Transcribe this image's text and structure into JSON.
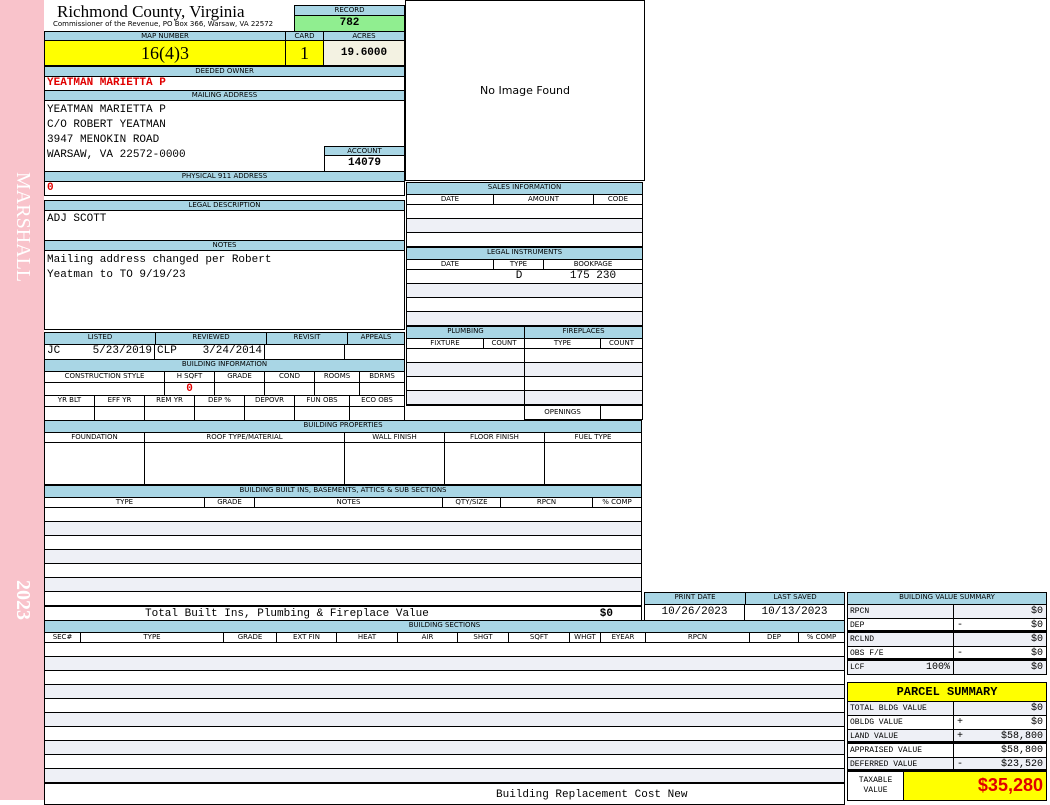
{
  "sidebar": {
    "district": "MARSHALL",
    "year": "2023",
    "color": "#f9c3cb"
  },
  "header": {
    "county": "Richmond County, Virginia",
    "subtitle": "Commissioner of the Revenue, PO Box 366, Warsaw, VA 22572",
    "record_label": "RECORD",
    "record": "782"
  },
  "parcel": {
    "map_number_label": "MAP NUMBER",
    "map_number": "16(4)3",
    "card_label": "CARD",
    "card": "1",
    "acres_label": "ACRES",
    "acres": "19.6000"
  },
  "owner": {
    "label": "DEEDED OWNER",
    "name": "YEATMAN MARIETTA P"
  },
  "mailing": {
    "label": "MAILING ADDRESS",
    "lines": [
      "YEATMAN MARIETTA P",
      "C/O ROBERT YEATMAN",
      "3947 MENOKIN ROAD",
      "WARSAW, VA 22572-0000"
    ],
    "account_label": "ACCOUNT",
    "account": "14079"
  },
  "physical": {
    "label": "PHYSICAL 911 ADDRESS",
    "value": "0"
  },
  "legal": {
    "label": "LEGAL DESCRIPTION",
    "value": "ADJ SCOTT"
  },
  "notes": {
    "label": "NOTES",
    "lines": [
      "Mailing address changed per Robert",
      "Yeatman to TO 9/19/23"
    ]
  },
  "review": {
    "listed_label": "LISTED",
    "listed_by": "JC",
    "listed_date": "5/23/2019",
    "reviewed_label": "REVIEWED",
    "reviewed_by": "CLP",
    "reviewed_date": "3/24/2014",
    "revisit_label": "REVISIT",
    "appeals_label": "APPEALS"
  },
  "building_info": {
    "label": "BUILDING INFORMATION",
    "cols1": [
      "CONSTRUCTION STYLE",
      "H SQFT",
      "GRADE",
      "COND",
      "ROOMS",
      "BDRMS"
    ],
    "hsqft": "0",
    "cols2": [
      "YR BLT",
      "EFF YR",
      "REM YR",
      "DEP %",
      "DEPOVR",
      "FUN OBS",
      "ECO OBS"
    ]
  },
  "image": {
    "text": "No Image Found"
  },
  "sales": {
    "label": "SALES INFORMATION",
    "cols": [
      "DATE",
      "AMOUNT",
      "CODE"
    ]
  },
  "instruments": {
    "label": "LEGAL INSTRUMENTS",
    "cols": [
      "DATE",
      "TYPE",
      "BOOKPAGE"
    ],
    "rows": [
      {
        "date": "",
        "type": "D",
        "bookpage": "175 230"
      }
    ]
  },
  "plumbing": {
    "label": "PLUMBING",
    "cols": [
      "FIXTURE",
      "COUNT"
    ]
  },
  "fireplaces": {
    "label": "FIREPLACES",
    "cols": [
      "TYPE",
      "COUNT"
    ],
    "openings_label": "OPENINGS"
  },
  "properties": {
    "label": "BUILDING PROPERTIES",
    "cols": [
      "FOUNDATION",
      "ROOF TYPE/MATERIAL",
      "WALL FINISH",
      "FLOOR FINISH",
      "FUEL TYPE"
    ]
  },
  "builtins": {
    "label": "BUILDING BUILT INS, BASEMENTS, ATTICS & SUB SECTIONS",
    "cols": [
      "TYPE",
      "GRADE",
      "NOTES",
      "QTY/SIZE",
      "RPCN",
      "% COMP"
    ],
    "total_label": "Total Built Ins, Plumbing & Fireplace Value",
    "total": "$0"
  },
  "dates": {
    "print_label": "PRINT DATE",
    "print": "10/26/2023",
    "saved_label": "LAST SAVED",
    "saved": "10/13/2023"
  },
  "sections": {
    "label": "BUILDING SECTIONS",
    "cols": [
      "SEC#",
      "TYPE",
      "GRADE",
      "EXT FIN",
      "HEAT",
      "AIR",
      "SHGT",
      "SQFT",
      "WHGT",
      "EYEAR",
      "RPCN",
      "DEP",
      "% COMP"
    ],
    "footer": "Building Replacement Cost New"
  },
  "value_summary": {
    "label": "BUILDING VALUE SUMMARY",
    "rows": [
      {
        "label": "RPCN",
        "extra": "",
        "sign": "",
        "value": "$0"
      },
      {
        "label": "DEP",
        "extra": "",
        "sign": "-",
        "value": "$0"
      },
      {
        "label": "RCLND",
        "extra": "",
        "sign": "",
        "value": "$0"
      },
      {
        "label": "OBS F/E",
        "extra": "",
        "sign": "-",
        "value": "$0"
      },
      {
        "label": "LCF",
        "extra": "100%",
        "sign": "",
        "value": "$0"
      }
    ]
  },
  "parcel_summary": {
    "label": "PARCEL SUMMARY",
    "rows": [
      {
        "label": "TOTAL BLDG VALUE",
        "sign": "",
        "value": "$0"
      },
      {
        "label": "OBLDG VALUE",
        "sign": "+",
        "value": "$0"
      },
      {
        "label": "LAND VALUE",
        "sign": "+",
        "value": "$58,800"
      },
      {
        "label": "APPRAISED VALUE",
        "sign": "",
        "value": "$58,800"
      },
      {
        "label": "DEFERRED VALUE",
        "sign": "-",
        "value": "$23,520"
      }
    ],
    "taxable_label": "TAXABLE VALUE",
    "taxable": "$35,280"
  },
  "colors": {
    "header_blue": "#a9d6e5",
    "highlight_yellow": "#ffff00",
    "record_green": "#90ee90",
    "owner_red": "#e00000"
  }
}
